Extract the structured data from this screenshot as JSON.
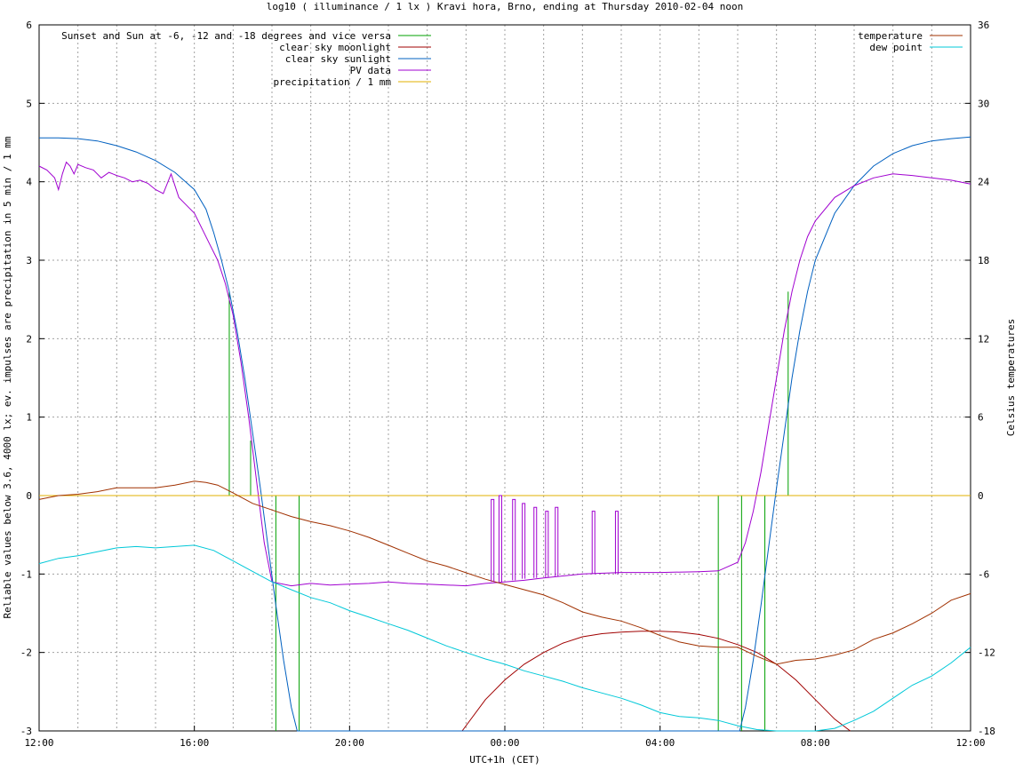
{
  "chart_data": {
    "type": "line",
    "title": "log10 ( illuminance / 1 lx ) Kravi hora, Brno, ending at Thursday 2010-02-04 noon",
    "xlabel": "UTC+1h (CET)",
    "ylabel": "Reliable values below 3.6, 4000 lx; ev. impulses are precipitation in 5 min / 1 mm",
    "y2label": "Celsius temperatures",
    "x_unit": "hours since start (12:00)",
    "xlim": [
      0,
      24
    ],
    "ylim": [
      -3,
      6
    ],
    "y2lim": [
      -18,
      36
    ],
    "x_ticks": [
      {
        "h": 0,
        "label": "12:00"
      },
      {
        "h": 4,
        "label": "16:00"
      },
      {
        "h": 8,
        "label": "20:00"
      },
      {
        "h": 12,
        "label": "00:00"
      },
      {
        "h": 16,
        "label": "04:00"
      },
      {
        "h": 20,
        "label": "08:00"
      },
      {
        "h": 24,
        "label": "12:00"
      }
    ],
    "y_ticks": [
      "-3",
      "-2",
      "-1",
      "0",
      "1",
      "2",
      "3",
      "4",
      "5",
      "6"
    ],
    "y2_ticks": [
      "-18",
      "-12",
      "-6",
      "0",
      "6",
      "12",
      "18",
      "24",
      "30",
      "36"
    ],
    "grid": true,
    "legend_left": [
      {
        "label": "Sunset and Sun at -6, -12 and -18 degrees and vice versa",
        "color": "#00a000"
      },
      {
        "label": "clear sky moonlight",
        "color": "#a00000"
      },
      {
        "label": "clear sky sunlight",
        "color": "#0060c0"
      },
      {
        "label": "PV data",
        "color": "#a000d0"
      },
      {
        "label": "precipitation / 1 mm",
        "color": "#e0b000"
      }
    ],
    "legend_right": [
      {
        "label": "temperature",
        "color": "#a03000"
      },
      {
        "label": "dew point",
        "color": "#00c8d8"
      }
    ],
    "series": [
      {
        "key": "sun_events",
        "color": "#00a000",
        "style": "impulse",
        "events": [
          {
            "x": 4.9,
            "top": 2.6
          },
          {
            "x": 5.45,
            "top": 0.7
          },
          {
            "x": 6.1,
            "top": 0.0
          },
          {
            "x": 6.7,
            "top": 0.0
          },
          {
            "x": 17.5,
            "top": 0.0
          },
          {
            "x": 18.1,
            "top": 0.0
          },
          {
            "x": 18.7,
            "top": 0.0
          },
          {
            "x": 19.3,
            "top": 2.6
          }
        ]
      },
      {
        "key": "moonlight",
        "color": "#a00000",
        "x": [
          10.9,
          11.5,
          12.0,
          12.5,
          13.0,
          13.5,
          14.0,
          14.5,
          15.0,
          15.5,
          16.0,
          16.5,
          17.0,
          17.5,
          18.0,
          18.5,
          19.0,
          19.5,
          20.0,
          20.5,
          20.9
        ],
        "y": [
          -3.0,
          -2.6,
          -2.35,
          -2.15,
          -2.0,
          -1.88,
          -1.8,
          -1.76,
          -1.74,
          -1.73,
          -1.73,
          -1.74,
          -1.77,
          -1.82,
          -1.9,
          -2.0,
          -2.15,
          -2.35,
          -2.6,
          -2.85,
          -3.0
        ]
      },
      {
        "key": "sunlight",
        "color": "#0060c0",
        "x": [
          0.0,
          0.5,
          1.0,
          1.5,
          2.0,
          2.5,
          3.0,
          3.5,
          4.0,
          4.3,
          4.5,
          4.7,
          4.9,
          5.1,
          5.3,
          5.5,
          5.7,
          5.9,
          6.1,
          6.3,
          6.5,
          6.65,
          18.05,
          18.2,
          18.4,
          18.6,
          18.8,
          19.0,
          19.2,
          19.4,
          19.6,
          19.8,
          20.0,
          20.5,
          21.0,
          21.5,
          22.0,
          22.5,
          23.0,
          23.5,
          24.0
        ],
        "y": [
          4.56,
          4.56,
          4.55,
          4.52,
          4.46,
          4.38,
          4.27,
          4.12,
          3.9,
          3.65,
          3.35,
          3.0,
          2.6,
          2.1,
          1.5,
          0.8,
          0.1,
          -0.65,
          -1.4,
          -2.1,
          -2.7,
          -3.0,
          -3.0,
          -2.7,
          -2.1,
          -1.4,
          -0.65,
          0.1,
          0.8,
          1.5,
          2.1,
          2.6,
          3.0,
          3.6,
          3.95,
          4.2,
          4.36,
          4.46,
          4.52,
          4.55,
          4.57
        ]
      },
      {
        "key": "pv",
        "color": "#a000d0",
        "x": [
          0.0,
          0.2,
          0.4,
          0.5,
          0.6,
          0.7,
          0.8,
          0.9,
          1.0,
          1.2,
          1.4,
          1.6,
          1.8,
          2.0,
          2.2,
          2.4,
          2.6,
          2.8,
          3.0,
          3.2,
          3.4,
          3.6,
          3.8,
          4.0,
          4.2,
          4.4,
          4.6,
          4.8,
          5.0,
          5.2,
          5.4,
          5.6,
          5.8,
          6.0,
          6.5,
          7.0,
          7.5,
          8.0,
          8.5,
          9.0,
          9.5,
          10.0,
          10.5,
          11.0,
          11.5,
          12.0,
          12.5,
          13.0,
          14.0,
          15.0,
          16.0,
          17.0,
          17.5,
          18.0,
          18.2,
          18.4,
          18.6,
          18.8,
          19.0,
          19.2,
          19.4,
          19.6,
          19.8,
          20.0,
          20.5,
          21.0,
          21.5,
          22.0,
          22.5,
          23.0,
          23.5,
          24.0
        ],
        "y": [
          4.2,
          4.15,
          4.05,
          3.9,
          4.1,
          4.25,
          4.2,
          4.1,
          4.22,
          4.18,
          4.15,
          4.05,
          4.12,
          4.08,
          4.05,
          4.0,
          4.02,
          3.98,
          3.9,
          3.85,
          4.1,
          3.8,
          3.7,
          3.6,
          3.4,
          3.2,
          3.0,
          2.7,
          2.3,
          1.7,
          1.0,
          0.2,
          -0.6,
          -1.1,
          -1.15,
          -1.12,
          -1.14,
          -1.13,
          -1.12,
          -1.1,
          -1.12,
          -1.13,
          -1.14,
          -1.15,
          -1.12,
          -1.1,
          -1.08,
          -1.05,
          -1.0,
          -0.98,
          -0.98,
          -0.97,
          -0.96,
          -0.85,
          -0.6,
          -0.2,
          0.3,
          0.9,
          1.5,
          2.1,
          2.6,
          3.0,
          3.3,
          3.5,
          3.8,
          3.95,
          4.05,
          4.1,
          4.08,
          4.05,
          4.02,
          3.97
        ]
      },
      {
        "key": "precipitation",
        "color": "#e0b000",
        "x": [
          0,
          24
        ],
        "y": [
          0,
          0
        ]
      },
      {
        "key": "temperature",
        "color": "#a03000",
        "axis": "y2",
        "x": [
          0.0,
          0.5,
          1.0,
          1.5,
          2.0,
          2.5,
          3.0,
          3.5,
          4.0,
          4.3,
          4.6,
          5.0,
          5.5,
          6.0,
          6.5,
          7.0,
          7.5,
          8.0,
          8.5,
          9.0,
          9.5,
          10.0,
          10.5,
          11.0,
          11.5,
          12.0,
          12.5,
          13.0,
          13.5,
          14.0,
          14.5,
          15.0,
          15.5,
          16.0,
          16.5,
          17.0,
          17.5,
          18.0,
          18.5,
          19.0,
          19.5,
          20.0,
          20.5,
          21.0,
          21.5,
          22.0,
          22.5,
          23.0,
          23.5,
          24.0
        ],
        "y": [
          -0.3,
          0.0,
          0.1,
          0.3,
          0.6,
          0.6,
          0.6,
          0.8,
          1.1,
          1.0,
          0.8,
          0.2,
          -0.6,
          -1.1,
          -1.6,
          -2.0,
          -2.3,
          -2.7,
          -3.2,
          -3.8,
          -4.4,
          -5.0,
          -5.4,
          -5.9,
          -6.4,
          -6.8,
          -7.2,
          -7.6,
          -8.2,
          -8.9,
          -9.3,
          -9.6,
          -10.1,
          -10.7,
          -11.2,
          -11.5,
          -11.6,
          -11.6,
          -12.3,
          -12.9,
          -12.6,
          -12.5,
          -12.2,
          -11.8,
          -11.0,
          -10.5,
          -9.8,
          -9.0,
          -8.0,
          -7.5
        ]
      },
      {
        "key": "dew_point",
        "color": "#00c8d8",
        "axis": "y2",
        "x": [
          0.0,
          0.5,
          1.0,
          1.5,
          2.0,
          2.5,
          3.0,
          3.5,
          4.0,
          4.5,
          5.0,
          5.5,
          6.0,
          6.5,
          7.0,
          7.5,
          8.0,
          8.5,
          9.0,
          9.5,
          10.0,
          10.5,
          11.0,
          11.5,
          12.0,
          12.5,
          13.0,
          13.5,
          14.0,
          14.5,
          15.0,
          15.5,
          16.0,
          16.5,
          17.0,
          17.5,
          18.0,
          18.5,
          19.0,
          19.5,
          20.0,
          20.5,
          21.0,
          21.5,
          22.0,
          22.5,
          23.0,
          23.5,
          24.0
        ],
        "y": [
          -5.2,
          -4.8,
          -4.6,
          -4.3,
          -4.0,
          -3.9,
          -4.0,
          -3.9,
          -3.8,
          -4.2,
          -5.0,
          -5.8,
          -6.6,
          -7.2,
          -7.8,
          -8.2,
          -8.8,
          -9.3,
          -9.8,
          -10.3,
          -10.9,
          -11.5,
          -12.0,
          -12.5,
          -12.9,
          -13.4,
          -13.8,
          -14.2,
          -14.7,
          -15.1,
          -15.5,
          -16.0,
          -16.6,
          -16.9,
          -17.0,
          -17.2,
          -17.6,
          -17.9,
          -18.0,
          -18.0,
          -18.1,
          -17.8,
          -17.2,
          -16.5,
          -15.5,
          -14.5,
          -13.8,
          -12.8,
          -11.6
        ]
      }
    ],
    "pv_spikes": [
      {
        "x": 11.65,
        "top": -0.05,
        "base": -1.1
      },
      {
        "x": 11.85,
        "top": -0.0,
        "base": -1.1
      },
      {
        "x": 12.2,
        "top": -0.05,
        "base": -1.08
      },
      {
        "x": 12.45,
        "top": -0.1,
        "base": -1.06
      },
      {
        "x": 12.75,
        "top": -0.15,
        "base": -1.05
      },
      {
        "x": 13.05,
        "top": -0.2,
        "base": -1.04
      },
      {
        "x": 13.3,
        "top": -0.15,
        "base": -1.03
      },
      {
        "x": 14.25,
        "top": -0.2,
        "base": -1.0
      },
      {
        "x": 14.85,
        "top": -0.2,
        "base": -1.0
      }
    ]
  }
}
